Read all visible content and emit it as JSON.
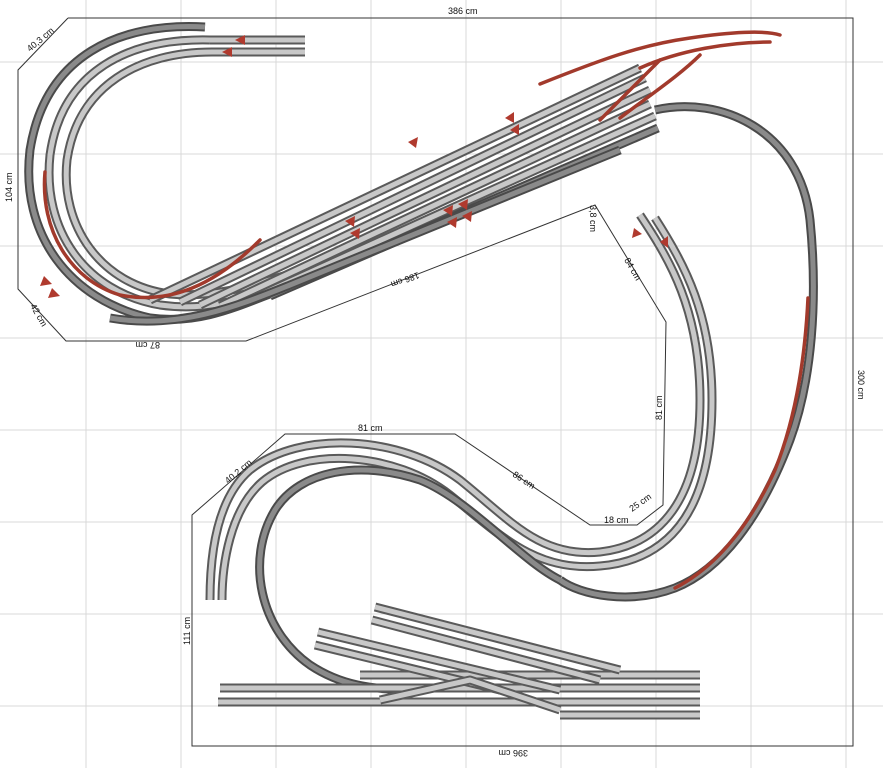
{
  "plan": {
    "dimensions": {
      "top": "386 cm",
      "upper_right": "40,3 cm",
      "left_upper": "104 cm",
      "lower_left_diag": "42 cm",
      "bottom_upper": "87 cm",
      "upper_diag": "186 cm",
      "notch_top": "3,8 cm",
      "notch_side": "84 cm",
      "right_side": "300 cm",
      "inner_right": "81 cm",
      "lower_top": "81 cm",
      "lower_diag": "86 cm",
      "lower_step": "18 cm",
      "lower_step_diag": "25 cm",
      "lower_left_diag2": "40,2 cm",
      "left_lower": "111 cm",
      "bottom": "396 cm"
    }
  }
}
